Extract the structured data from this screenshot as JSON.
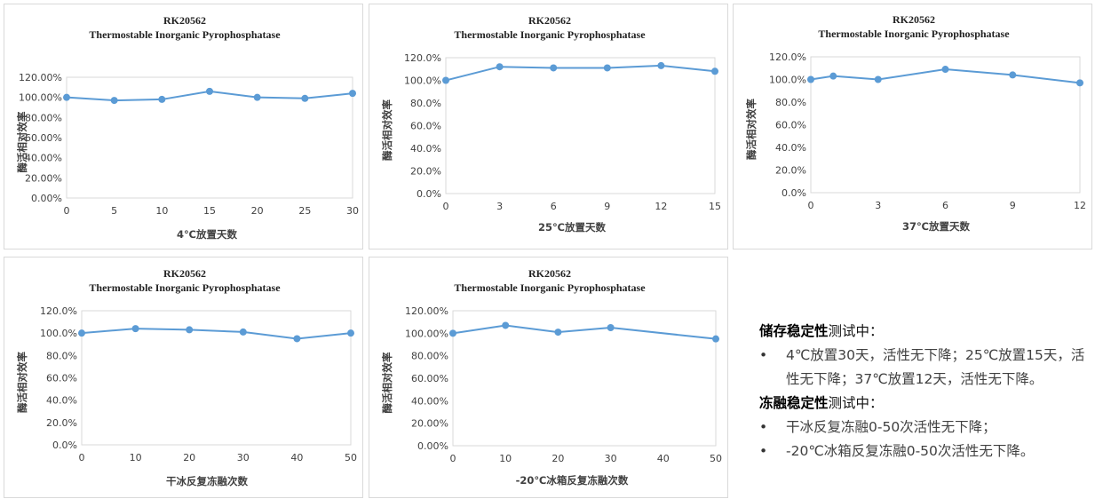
{
  "charts": [
    {
      "title": "RK20562",
      "subtitle": "Thermostable Inorganic Pyrophosphatase",
      "xlabel": "4℃放置天数",
      "ylabel": "酶活相对效率",
      "y_ticks": [
        "0.00%",
        "20.00%",
        "40.00%",
        "60.00%",
        "80.00%",
        "100.00%",
        "120.00%"
      ],
      "x_ticks": [
        "0",
        "5",
        "10",
        "15",
        "20",
        "25",
        "30"
      ]
    },
    {
      "title": "RK20562",
      "subtitle": "Thermostable Inorganic Pyrophosphatase",
      "xlabel": "25℃放置天数",
      "ylabel": "酶活相对效率",
      "y_ticks": [
        "0.0%",
        "20.0%",
        "40.0%",
        "60.0%",
        "80.0%",
        "100.0%",
        "120.0%"
      ],
      "x_ticks": [
        "0",
        "3",
        "6",
        "9",
        "12",
        "15"
      ]
    },
    {
      "title": "RK20562",
      "subtitle": "Thermostable Inorganic Pyrophosphatase",
      "xlabel": "37℃放置天数",
      "ylabel": "酶活相对效率",
      "y_ticks": [
        "0.0%",
        "20.0%",
        "40.0%",
        "60.0%",
        "80.0%",
        "100.0%",
        "120.0%"
      ],
      "x_ticks": [
        "0",
        "3",
        "6",
        "9",
        "12"
      ]
    },
    {
      "title": "RK20562",
      "subtitle": "Thermostable Inorganic Pyrophosphatase",
      "xlabel": "干冰反复冻融次数",
      "ylabel": "酶活相对效率",
      "y_ticks": [
        "0.0%",
        "20.0%",
        "40.0%",
        "60.0%",
        "80.0%",
        "100.0%",
        "120.0%"
      ],
      "x_ticks": [
        "0",
        "10",
        "20",
        "30",
        "40",
        "50"
      ]
    },
    {
      "title": "RK20562",
      "subtitle": "Thermostable Inorganic Pyrophosphatase",
      "xlabel": "-20℃冰箱反复冻融次数",
      "ylabel": "酶活相对效率",
      "y_ticks": [
        "0.00%",
        "20.00%",
        "40.00%",
        "60.00%",
        "80.00%",
        "100.00%",
        "120.00%"
      ],
      "x_ticks": [
        "0",
        "10",
        "20",
        "30",
        "40",
        "50"
      ]
    }
  ],
  "chart_data": [
    {
      "type": "line",
      "title": "RK20562",
      "subtitle": "Thermostable Inorganic Pyrophosphatase",
      "xlabel": "4℃放置天数",
      "ylabel": "酶活相对效率",
      "x": [
        0,
        5,
        10,
        15,
        20,
        25,
        30
      ],
      "y": [
        100,
        97,
        98,
        106,
        100,
        99,
        104
      ],
      "xlim": [
        0,
        30
      ],
      "ylim": [
        0,
        120
      ],
      "y_unit": "%",
      "grid": false,
      "color": "#5b9bd5"
    },
    {
      "type": "line",
      "title": "RK20562",
      "subtitle": "Thermostable Inorganic Pyrophosphatase",
      "xlabel": "25℃放置天数",
      "ylabel": "酶活相对效率",
      "x": [
        0,
        3,
        6,
        9,
        12,
        15
      ],
      "y": [
        100,
        112,
        111,
        111,
        113,
        108
      ],
      "xlim": [
        0,
        15
      ],
      "ylim": [
        0,
        120
      ],
      "y_unit": "%",
      "grid": false,
      "color": "#5b9bd5"
    },
    {
      "type": "line",
      "title": "RK20562",
      "subtitle": "Thermostable Inorganic Pyrophosphatase",
      "xlabel": "37℃放置天数",
      "ylabel": "酶活相对效率",
      "x": [
        0,
        1,
        3,
        6,
        9,
        12
      ],
      "y": [
        100,
        103,
        100,
        109,
        104,
        97
      ],
      "xlim": [
        0,
        12
      ],
      "ylim": [
        0,
        120
      ],
      "y_unit": "%",
      "grid": false,
      "color": "#5b9bd5"
    },
    {
      "type": "line",
      "title": "RK20562",
      "subtitle": "Thermostable Inorganic Pyrophosphatase",
      "xlabel": "干冰反复冻融次数",
      "ylabel": "酶活相对效率",
      "x": [
        0,
        10,
        20,
        30,
        40,
        50
      ],
      "y": [
        100,
        104,
        103,
        101,
        95,
        100
      ],
      "xlim": [
        0,
        50
      ],
      "ylim": [
        0,
        120
      ],
      "y_unit": "%",
      "grid": false,
      "color": "#5b9bd5"
    },
    {
      "type": "line",
      "title": "RK20562",
      "subtitle": "Thermostable Inorganic Pyrophosphatase",
      "xlabel": "-20℃冰箱反复冻融次数",
      "ylabel": "酶活相对效率",
      "x": [
        0,
        10,
        20,
        30,
        50
      ],
      "y": [
        100,
        107,
        101,
        105,
        95
      ],
      "xlim": [
        0,
        50
      ],
      "ylim": [
        0,
        120
      ],
      "y_unit": "%",
      "grid": false,
      "color": "#5b9bd5"
    }
  ],
  "notes": {
    "storage_heading_bold": "储存稳定性",
    "storage_heading_rest": "测试中：",
    "storage_items": [
      "4℃放置30天，活性无下降；25℃放置15天，活性无下降；37℃放置12天，活性无下降。"
    ],
    "freeze_heading_bold": "冻融稳定性",
    "freeze_heading_rest": "测试中：",
    "freeze_items": [
      "干冰反复冻融0-50次活性无下降；",
      "-20℃冰箱反复冻融0-50次活性无下降。"
    ],
    "bullet": "•"
  }
}
